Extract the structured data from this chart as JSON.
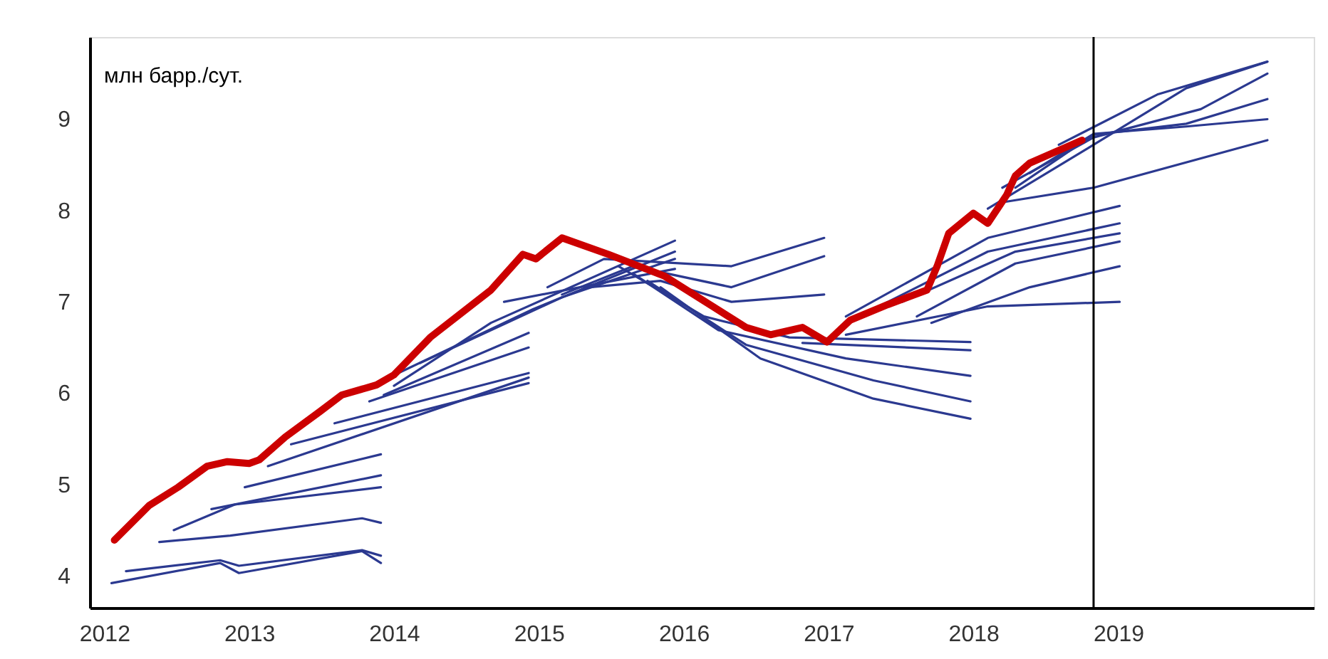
{
  "chart_data": {
    "type": "line",
    "annotations": [
      "млн барр./сут."
    ],
    "xlim": [
      2011.9,
      2020.35
    ],
    "xticks": [
      2012,
      2013,
      2014,
      2015,
      2016,
      2017,
      2018,
      2019
    ],
    "ylim": [
      3.65,
      9.9
    ],
    "yticks": [
      4,
      5,
      6,
      7,
      8,
      9
    ],
    "grid": false,
    "legend": false,
    "ref_lines": [
      {
        "axis": "x",
        "value": 2018.83,
        "color": "#000000"
      }
    ],
    "series": [
      {
        "color": "#2b3990",
        "x": [
          2012.05,
          2012.8,
          2012.93,
          2013.78,
          2013.91
        ],
        "values": [
          3.92,
          4.14,
          4.03,
          4.27,
          4.14
        ]
      },
      {
        "color": "#2b3990",
        "x": [
          2012.15,
          2012.8,
          2012.93,
          2013.78,
          2013.91
        ],
        "values": [
          4.05,
          4.17,
          4.11,
          4.28,
          4.22
        ]
      },
      {
        "color": "#2b3990",
        "x": [
          2012.38,
          2012.87,
          2013.78,
          2013.91
        ],
        "values": [
          4.37,
          4.44,
          4.63,
          4.58
        ]
      },
      {
        "color": "#2b3990",
        "x": [
          2012.48,
          2012.9,
          2013.91
        ],
        "values": [
          4.5,
          4.78,
          4.97
        ]
      },
      {
        "color": "#2b3990",
        "x": [
          2012.74,
          2013.91
        ],
        "values": [
          4.73,
          5.1
        ]
      },
      {
        "color": "#2b3990",
        "x": [
          2012.97,
          2013.91
        ],
        "values": [
          4.97,
          5.33
        ]
      },
      {
        "color": "#2b3990",
        "x": [
          2013.13,
          2014.93
        ],
        "values": [
          5.2,
          6.17
        ]
      },
      {
        "color": "#2b3990",
        "x": [
          2013.29,
          2014.93
        ],
        "values": [
          5.44,
          6.11
        ]
      },
      {
        "color": "#2b3990",
        "x": [
          2013.59,
          2014.93
        ],
        "values": [
          5.67,
          6.22
        ]
      },
      {
        "color": "#2b3990",
        "x": [
          2013.83,
          2014.93
        ],
        "values": [
          5.91,
          6.5
        ]
      },
      {
        "color": "#2b3990",
        "x": [
          2013.93,
          2014.93
        ],
        "values": [
          5.98,
          6.66
        ]
      },
      {
        "color": "#2b3990",
        "x": [
          2014.0,
          2014.67,
          2015.94
        ],
        "values": [
          6.08,
          6.77,
          7.67
        ]
      },
      {
        "color": "#2b3990",
        "x": [
          2014.03,
          2014.96,
          2015.94
        ],
        "values": [
          6.22,
          6.92,
          7.55
        ]
      },
      {
        "color": "#2b3990",
        "x": [
          2014.18,
          2015.16,
          2015.94
        ],
        "values": [
          6.33,
          7.05,
          7.47
        ]
      },
      {
        "color": "#2b3990",
        "x": [
          2014.76,
          2015.94
        ],
        "values": [
          7.0,
          7.36
        ]
      },
      {
        "color": "#2b3990",
        "x": [
          2015.06,
          2015.45,
          2016.33,
          2016.97
        ],
        "values": [
          7.16,
          7.47,
          7.39,
          7.7
        ]
      },
      {
        "color": "#2b3990",
        "x": [
          2015.16,
          2015.65,
          2016.33,
          2016.97
        ],
        "values": [
          7.08,
          7.39,
          7.16,
          7.5
        ]
      },
      {
        "color": "#2b3990",
        "x": [
          2015.35,
          2015.84,
          2016.33,
          2016.97
        ],
        "values": [
          7.16,
          7.23,
          7.0,
          7.08
        ]
      },
      {
        "color": "#2b3990",
        "x": [
          2015.55,
          2016.14,
          2016.73,
          2017.98
        ],
        "values": [
          7.39,
          6.84,
          6.61,
          6.56
        ]
      },
      {
        "color": "#2b3990",
        "x": [
          2015.65,
          2016.24,
          2017.12,
          2017.98
        ],
        "values": [
          7.31,
          6.69,
          6.38,
          6.19
        ]
      },
      {
        "color": "#2b3990",
        "x": [
          2015.75,
          2016.43,
          2017.31,
          2017.98
        ],
        "values": [
          7.23,
          6.53,
          6.14,
          5.91
        ]
      },
      {
        "color": "#2b3990",
        "x": [
          2015.84,
          2016.53,
          2017.31,
          2017.98
        ],
        "values": [
          7.16,
          6.38,
          5.94,
          5.72
        ]
      },
      {
        "color": "#2b3990",
        "x": [
          2016.82,
          2017.98
        ],
        "values": [
          6.55,
          6.47
        ]
      },
      {
        "color": "#2b3990",
        "x": [
          2017.12,
          2018.1,
          2019.01
        ],
        "values": [
          6.84,
          7.7,
          8.05
        ]
      },
      {
        "color": "#2b3990",
        "x": [
          2017.31,
          2018.1,
          2019.01
        ],
        "values": [
          6.92,
          7.55,
          7.86
        ]
      },
      {
        "color": "#2b3990",
        "x": [
          2017.51,
          2018.29,
          2019.01
        ],
        "values": [
          7.0,
          7.55,
          7.75
        ]
      },
      {
        "color": "#2b3990",
        "x": [
          2017.61,
          2018.29,
          2019.01
        ],
        "values": [
          6.84,
          7.42,
          7.66
        ]
      },
      {
        "color": "#2b3990",
        "x": [
          2017.71,
          2018.39,
          2019.01
        ],
        "values": [
          6.77,
          7.16,
          7.39
        ]
      },
      {
        "color": "#2b3990",
        "x": [
          2017.12,
          2018.1,
          2019.01
        ],
        "values": [
          6.64,
          6.95,
          7.0
        ]
      },
      {
        "color": "#2b3990",
        "x": [
          2018.1,
          2018.83,
          2019.47,
          2020.03
        ],
        "values": [
          8.02,
          8.72,
          9.34,
          9.63
        ]
      },
      {
        "color": "#2b3990",
        "x": [
          2018.2,
          2018.83,
          2019.57,
          2020.03
        ],
        "values": [
          8.25,
          8.8,
          9.11,
          9.5
        ]
      },
      {
        "color": "#2b3990",
        "x": [
          2018.29,
          2018.83,
          2019.47,
          2020.03
        ],
        "values": [
          8.25,
          8.83,
          8.95,
          9.22
        ]
      },
      {
        "color": "#2b3990",
        "x": [
          2018.39,
          2018.83,
          2019.47,
          2020.03
        ],
        "values": [
          8.41,
          8.84,
          8.92,
          9.0
        ]
      },
      {
        "color": "#2b3990",
        "x": [
          2018.2,
          2018.83,
          2020.03
        ],
        "values": [
          8.09,
          8.25,
          8.77
        ]
      },
      {
        "color": "#2b3990",
        "x": [
          2018.59,
          2019.27,
          2020.03
        ],
        "values": [
          8.72,
          9.27,
          9.63
        ]
      },
      {
        "color": "#cc0000",
        "x": [
          2012.07,
          2012.31,
          2012.51,
          2012.71,
          2012.85,
          2013.0,
          2013.07,
          2013.25,
          2013.49,
          2013.64,
          2013.88,
          2014.0,
          2014.25,
          2014.67,
          2014.89,
          2014.98,
          2015.16,
          2015.48,
          2015.87,
          2016.2,
          2016.43,
          2016.6,
          2016.82,
          2016.99,
          2017.15,
          2017.41,
          2017.68,
          2017.75,
          2017.83,
          2018.0,
          2018.1,
          2018.23,
          2018.29,
          2018.39,
          2018.75
        ],
        "values": [
          4.39,
          4.77,
          4.97,
          5.2,
          5.25,
          5.23,
          5.27,
          5.52,
          5.8,
          5.98,
          6.09,
          6.2,
          6.61,
          7.13,
          7.52,
          7.47,
          7.7,
          7.52,
          7.28,
          6.95,
          6.72,
          6.64,
          6.72,
          6.56,
          6.8,
          6.97,
          7.13,
          7.39,
          7.75,
          7.97,
          7.86,
          8.17,
          8.38,
          8.52,
          8.77
        ]
      }
    ]
  }
}
